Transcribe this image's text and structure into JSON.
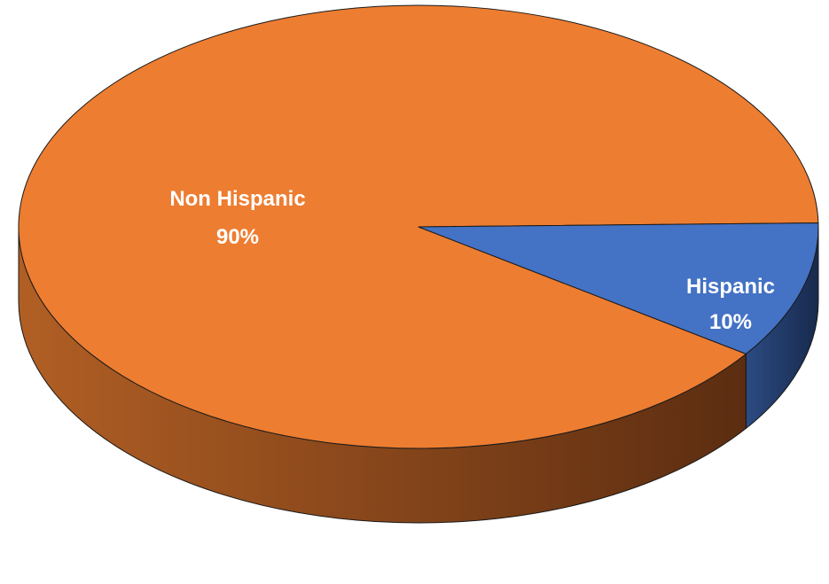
{
  "chart_data": {
    "type": "pie",
    "style": "3d",
    "title": "",
    "categories": [
      "Non Hispanic",
      "Hispanic"
    ],
    "values": [
      90,
      10
    ],
    "unit": "%",
    "colors": [
      "#ED7D31",
      "#4472C4"
    ],
    "side_colors": {
      "Non Hispanic": [
        "#B15F24",
        "#5C2D11"
      ],
      "Hispanic": [
        "#2C4B82",
        "#172A4D"
      ]
    },
    "start_angle_deg": -1,
    "data_labels": [
      {
        "name": "Non Hispanic",
        "percent": "90%"
      },
      {
        "name": "Hispanic",
        "percent": "10%"
      }
    ],
    "legend": "none",
    "grid": false
  }
}
